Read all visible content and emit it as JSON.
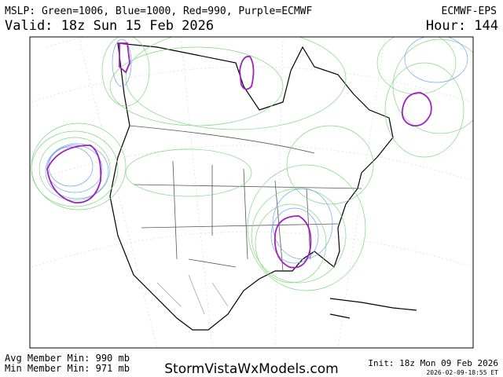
{
  "header": {
    "legend": "MSLP: Green=1006, Blue=1000, Red=990, Purple=ECMWF",
    "model": "ECMWF-EPS",
    "valid": "Valid: 18z Sun 15 Feb 2026",
    "hour": "Hour: 144"
  },
  "footer": {
    "avg_min": "Avg Member Min: 990 mb",
    "min_min": "Min Member Min: 971 mb",
    "site": "StormVistaWxModels.com",
    "init": "Init: 18z Mon 09 Feb 2026",
    "timestamp": "2026-02-09-18:55 ET"
  }
}
